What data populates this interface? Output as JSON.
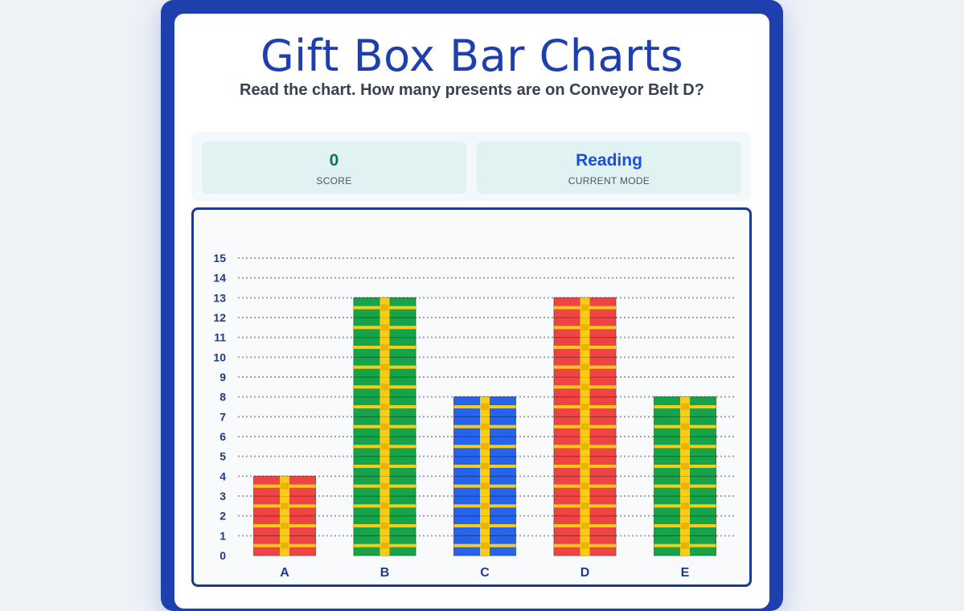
{
  "header": {
    "title": "Gift Box Bar Charts",
    "question": "Read the chart. How many presents are on Conveyor Belt D?"
  },
  "stats": {
    "score_value": "0",
    "score_label": "SCORE",
    "mode_value": "Reading",
    "mode_label": "CURRENT MODE"
  },
  "chart_data": {
    "type": "bar",
    "title": "",
    "xlabel": "",
    "ylabel": "",
    "categories": [
      "A",
      "B",
      "C",
      "D",
      "E"
    ],
    "values": [
      4,
      13,
      8,
      13,
      8
    ],
    "ylim": [
      0,
      15
    ],
    "yticks": [
      0,
      1,
      2,
      3,
      4,
      5,
      6,
      7,
      8,
      9,
      10,
      11,
      12,
      13,
      14,
      15
    ],
    "grid": true,
    "bar_colors": [
      "#ef4444",
      "#16a34a",
      "#2563eb",
      "#ef4444",
      "#16a34a"
    ],
    "ribbon_color": "#facc15"
  }
}
